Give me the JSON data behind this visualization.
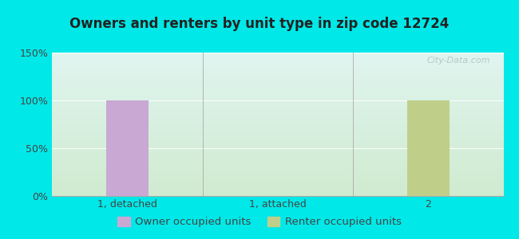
{
  "title": "Owners and renters by unit type in zip code 12724",
  "categories": [
    "1, detached",
    "1, attached",
    "2"
  ],
  "owner_values": [
    100,
    0,
    0
  ],
  "renter_values": [
    0,
    0,
    100
  ],
  "owner_color": "#c9a8d4",
  "renter_color": "#bfcf8a",
  "background_outer": "#00e8e8",
  "grad_top_left": "#e0f5f0",
  "grad_bottom_right": "#d8f0d8",
  "yticks": [
    0,
    50,
    100,
    150
  ],
  "ylim": [
    0,
    150
  ],
  "title_fontsize": 12,
  "tick_fontsize": 9,
  "legend_fontsize": 9.5,
  "bar_width": 0.28,
  "watermark": "City-Data.com"
}
